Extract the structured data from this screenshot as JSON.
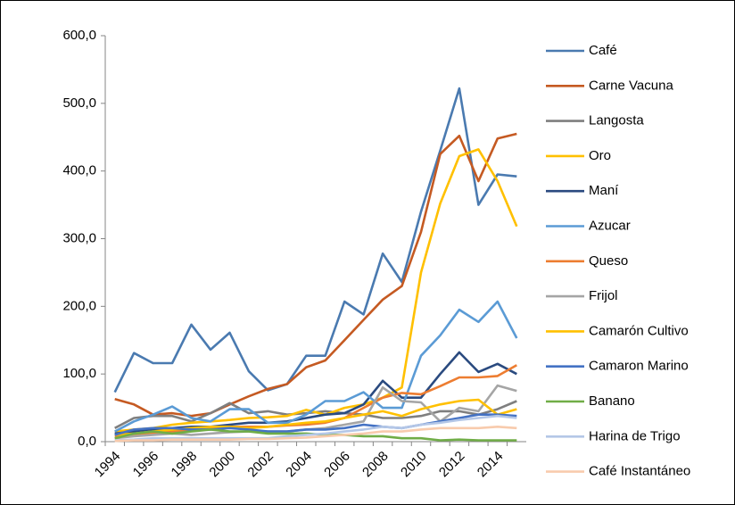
{
  "chart_data": {
    "type": "line",
    "categories": [
      "1994",
      null,
      "1996",
      null,
      "1998",
      null,
      "2000",
      null,
      "2002",
      null,
      "2004",
      null,
      "2006",
      null,
      "2008",
      null,
      "2010",
      null,
      "2012",
      null,
      "2014",
      null
    ],
    "ylim": [
      0,
      600
    ],
    "yticks": [
      {
        "value": 0,
        "label": "0,0"
      },
      {
        "value": 100,
        "label": "100,0"
      },
      {
        "value": 200,
        "label": "200,0"
      },
      {
        "value": 300,
        "label": "300,0"
      },
      {
        "value": 400,
        "label": "400,0"
      },
      {
        "value": 500,
        "label": "500,0"
      },
      {
        "value": 600,
        "label": "600,0"
      }
    ],
    "grid": false,
    "legend": "right",
    "series": [
      {
        "name": "Café",
        "color": "#4a7ab0",
        "values": [
          73,
          131,
          116,
          116,
          173,
          136,
          161,
          104,
          76,
          85,
          127,
          127,
          207,
          188,
          278,
          236,
          340,
          430,
          522,
          350,
          395,
          392
        ]
      },
      {
        "name": "Carne Vacuna",
        "color": "#c55a22",
        "values": [
          63,
          55,
          40,
          42,
          38,
          42,
          55,
          67,
          78,
          85,
          110,
          120,
          150,
          180,
          210,
          230,
          310,
          425,
          452,
          385,
          448,
          455
        ]
      },
      {
        "name": "Langosta",
        "color": "#7f7f7f",
        "values": [
          20,
          35,
          38,
          38,
          30,
          42,
          57,
          42,
          45,
          40,
          42,
          45,
          42,
          40,
          35,
          35,
          38,
          45,
          45,
          40,
          48,
          60
        ]
      },
      {
        "name": "Oro",
        "color": "#ffc000",
        "values": [
          15,
          18,
          20,
          25,
          28,
          30,
          32,
          35,
          36,
          38,
          47,
          40,
          50,
          55,
          65,
          80,
          250,
          352,
          422,
          432,
          385,
          318
        ]
      },
      {
        "name": "Maní",
        "color": "#2a4a7f",
        "values": [
          12,
          15,
          18,
          20,
          22,
          22,
          25,
          28,
          28,
          30,
          35,
          40,
          42,
          55,
          90,
          65,
          65,
          100,
          132,
          103,
          115,
          100
        ]
      },
      {
        "name": "Azucar",
        "color": "#5b9bd5",
        "values": [
          15,
          30,
          40,
          52,
          35,
          30,
          48,
          48,
          28,
          28,
          40,
          60,
          60,
          73,
          50,
          50,
          127,
          157,
          195,
          177,
          207,
          153
        ]
      },
      {
        "name": "Queso",
        "color": "#ed7d31",
        "values": [
          8,
          10,
          12,
          15,
          18,
          20,
          22,
          22,
          22,
          24,
          25,
          28,
          35,
          50,
          65,
          72,
          70,
          82,
          95,
          95,
          97,
          113
        ]
      },
      {
        "name": "Frijol",
        "color": "#a5a5a5",
        "values": [
          5,
          8,
          10,
          12,
          10,
          12,
          14,
          15,
          15,
          15,
          18,
          20,
          25,
          30,
          80,
          60,
          58,
          30,
          50,
          45,
          83,
          75
        ]
      },
      {
        "name": "Camarón Cultivo",
        "color": "#ffc000",
        "values": [
          10,
          12,
          15,
          18,
          20,
          22,
          22,
          20,
          22,
          25,
          28,
          30,
          35,
          40,
          45,
          38,
          48,
          55,
          60,
          62,
          40,
          48
        ]
      },
      {
        "name": "Camaron Marino",
        "color": "#4472c4",
        "values": [
          10,
          18,
          20,
          20,
          18,
          18,
          20,
          18,
          15,
          15,
          18,
          18,
          20,
          25,
          22,
          20,
          25,
          30,
          35,
          40,
          40,
          38
        ]
      },
      {
        "name": "Banano",
        "color": "#70ad47",
        "values": [
          5,
          12,
          15,
          12,
          15,
          18,
          15,
          15,
          12,
          12,
          12,
          10,
          10,
          8,
          8,
          5,
          5,
          2,
          3,
          2,
          2,
          2
        ]
      },
      {
        "name": "Harina de Trigo",
        "color": "#b4c7e7",
        "values": [
          2,
          3,
          5,
          5,
          5,
          5,
          5,
          5,
          5,
          8,
          10,
          12,
          15,
          18,
          22,
          20,
          25,
          28,
          32,
          35,
          38,
          35
        ]
      },
      {
        "name": "Café Instantáneo",
        "color": "#f8cbad",
        "values": [
          1,
          2,
          2,
          3,
          3,
          3,
          3,
          4,
          4,
          5,
          6,
          8,
          10,
          12,
          15,
          15,
          18,
          20,
          20,
          20,
          22,
          20
        ]
      }
    ]
  }
}
